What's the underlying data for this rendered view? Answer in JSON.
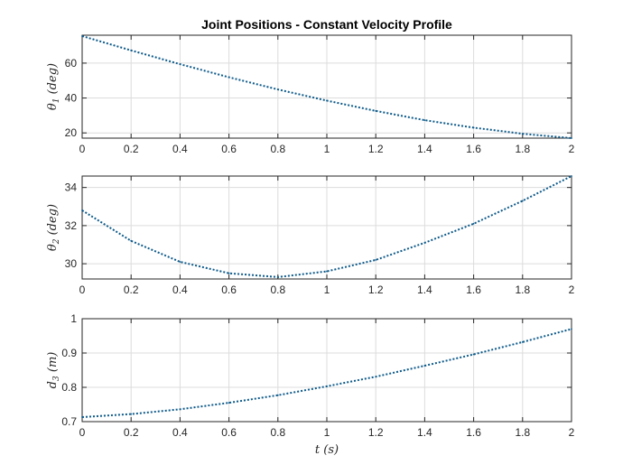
{
  "title": "Joint Positions - Constant Velocity Profile",
  "chart_data": [
    {
      "type": "line",
      "title": "Joint Positions - Constant Velocity Profile",
      "ylabel": "θ1 (deg)",
      "ylabel_parts": {
        "sym": "θ",
        "sub": "1",
        "rest": " (deg)"
      },
      "xlim": [
        0,
        2
      ],
      "ylim": [
        17,
        76
      ],
      "xticks": [
        "0",
        "0.2",
        "0.4",
        "0.6",
        "0.8",
        "1",
        "1.2",
        "1.4",
        "1.6",
        "1.8",
        "2"
      ],
      "yticks": [
        20,
        40,
        60
      ],
      "grid": true,
      "x": [
        0,
        0.2,
        0.4,
        0.6,
        0.8,
        1.0,
        1.2,
        1.4,
        1.6,
        1.8,
        2.0
      ],
      "series": [
        {
          "values": [
            75.5,
            67.3,
            59.4,
            51.9,
            44.9,
            38.5,
            32.6,
            27.3,
            23.0,
            19.5,
            17.0
          ]
        }
      ]
    },
    {
      "type": "line",
      "ylabel": "θ2 (deg)",
      "ylabel_parts": {
        "sym": "θ",
        "sub": "2",
        "rest": " (deg)"
      },
      "xlim": [
        0,
        2
      ],
      "ylim": [
        29.2,
        34.6
      ],
      "xticks": [
        "0",
        "0.2",
        "0.4",
        "0.6",
        "0.8",
        "1",
        "1.2",
        "1.4",
        "1.6",
        "1.8",
        "2"
      ],
      "yticks": [
        30,
        32,
        34
      ],
      "grid": true,
      "x": [
        0,
        0.2,
        0.4,
        0.6,
        0.8,
        1.0,
        1.2,
        1.4,
        1.6,
        1.8,
        2.0
      ],
      "series": [
        {
          "values": [
            32.8,
            31.2,
            30.1,
            29.5,
            29.3,
            29.6,
            30.2,
            31.1,
            32.1,
            33.3,
            34.6
          ]
        }
      ]
    },
    {
      "type": "line",
      "ylabel": "d3 (m)",
      "ylabel_parts": {
        "sym": "d",
        "sub": "3",
        "rest": " (m)"
      },
      "xlabel": "t (s)",
      "xlim": [
        0,
        2
      ],
      "ylim": [
        0.7,
        1.0
      ],
      "xticks": [
        "0",
        "0.2",
        "0.4",
        "0.6",
        "0.8",
        "1",
        "1.2",
        "1.4",
        "1.6",
        "1.8",
        "2"
      ],
      "yticks": [
        "0.7",
        "0.8",
        "0.9",
        "1"
      ],
      "grid": true,
      "x": [
        0,
        0.2,
        0.4,
        0.6,
        0.8,
        1.0,
        1.2,
        1.4,
        1.6,
        1.8,
        2.0
      ],
      "series": [
        {
          "values": [
            0.713,
            0.722,
            0.736,
            0.755,
            0.777,
            0.803,
            0.831,
            0.863,
            0.896,
            0.932,
            0.97
          ]
        }
      ]
    }
  ],
  "colors": {
    "line": "#0e5a8a",
    "axes": "#262626",
    "grid": "#dcdcdc",
    "background": "#ffffff"
  }
}
